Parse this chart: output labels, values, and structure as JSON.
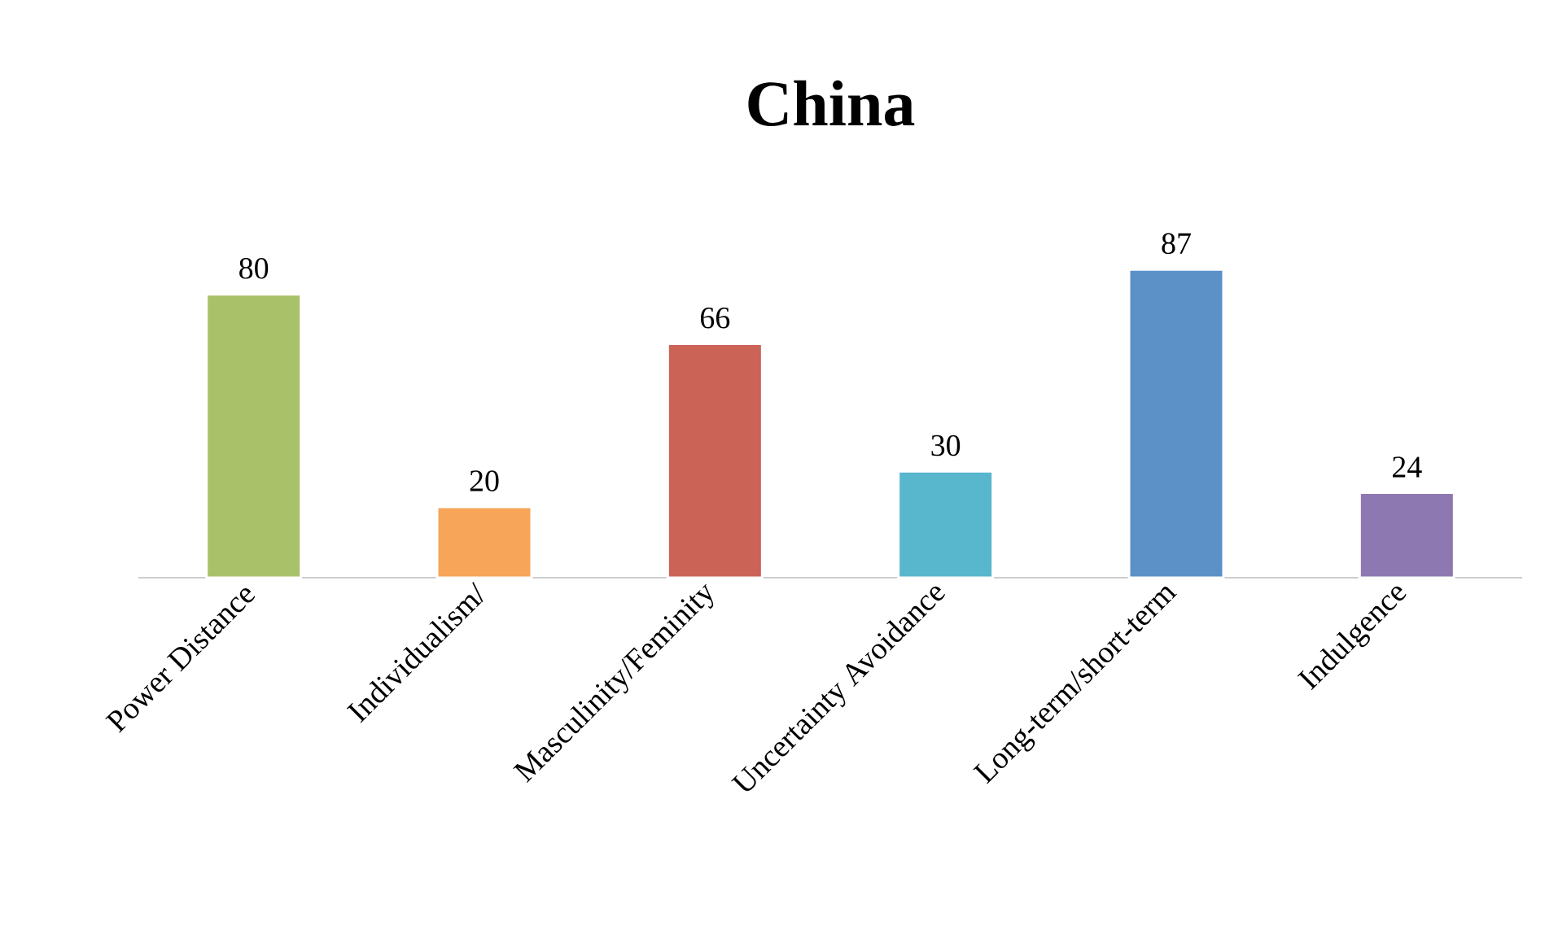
{
  "chart_data": {
    "type": "bar",
    "title": "China",
    "categories": [
      "Power Distance",
      "Individualism/",
      "Masculinity/Feminity",
      "Uncertainty Avoidance",
      "Long-term/short-term",
      "Indulgence"
    ],
    "values": [
      80,
      20,
      66,
      30,
      87,
      24
    ],
    "colors": [
      "#a9c26a",
      "#f7a558",
      "#cb6357",
      "#58b6cd",
      "#5b91c7",
      "#8e78b1"
    ],
    "data_labels": true
  }
}
